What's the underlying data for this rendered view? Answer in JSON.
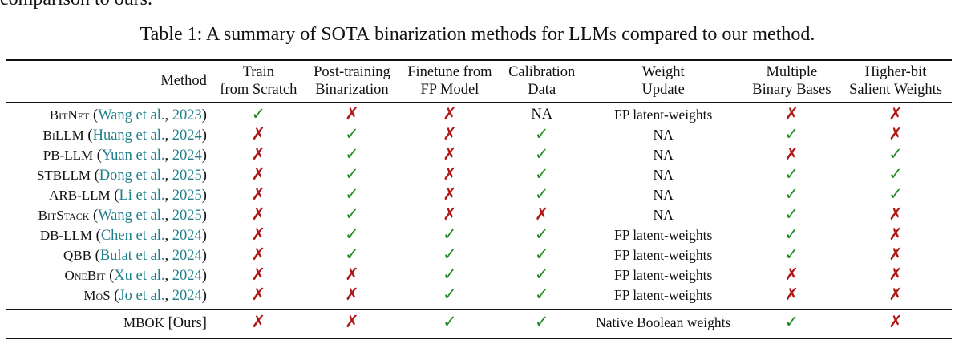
{
  "context_text": "comparison to ours.",
  "caption": {
    "label": "Table 1:",
    "pre": "A summary of",
    "sota": "SOTA",
    "mid": "binarization methods for",
    "llms": "LLMs",
    "post": "compared to our method."
  },
  "columns": {
    "method": "Method",
    "train_from_scratch": [
      "Train",
      "from Scratch"
    ],
    "post_training_binarization": [
      "Post-training",
      "Binarization"
    ],
    "finetune_from_fp": [
      "Finetune from",
      "FP Model"
    ],
    "calibration_data": [
      "Calibration",
      "Data"
    ],
    "weight_update": [
      "Weight",
      "Update"
    ],
    "multiple_binary_bases": [
      "Multiple",
      "Binary Bases"
    ],
    "higher_bit_salient": [
      "Higher-bit",
      "Salient Weights"
    ]
  },
  "marks": {
    "yes": "✓",
    "no": "✗"
  },
  "rows": [
    {
      "name": "BitNet",
      "cite_author": "Wang et al.",
      "cite_year": "2023",
      "train": "yes",
      "ptb": "no",
      "ft": "no",
      "calib": "NA",
      "update": "FP latent-weights",
      "multi": "no",
      "salient": "no"
    },
    {
      "name": "BiLLM",
      "cite_author": "Huang et al.",
      "cite_year": "2024",
      "train": "no",
      "ptb": "yes",
      "ft": "no",
      "calib": "yes",
      "update": "NA",
      "multi": "yes",
      "salient": "no"
    },
    {
      "name": "PB-LLM",
      "cite_author": "Yuan et al.",
      "cite_year": "2024",
      "train": "no",
      "ptb": "yes",
      "ft": "no",
      "calib": "yes",
      "update": "NA",
      "multi": "no",
      "salient": "yes"
    },
    {
      "name": "STBLLM",
      "cite_author": "Dong et al.",
      "cite_year": "2025",
      "train": "no",
      "ptb": "yes",
      "ft": "no",
      "calib": "yes",
      "update": "NA",
      "multi": "yes",
      "salient": "yes"
    },
    {
      "name": "ARB-LLM",
      "cite_author": "Li et al.",
      "cite_year": "2025",
      "train": "no",
      "ptb": "yes",
      "ft": "no",
      "calib": "yes",
      "update": "NA",
      "multi": "yes",
      "salient": "yes"
    },
    {
      "name": "BitStack",
      "cite_author": "Wang et al.",
      "cite_year": "2025",
      "train": "no",
      "ptb": "yes",
      "ft": "no",
      "calib": "no",
      "update": "NA",
      "multi": "yes",
      "salient": "no"
    },
    {
      "name": "DB-LLM",
      "cite_author": "Chen et al.",
      "cite_year": "2024",
      "train": "no",
      "ptb": "yes",
      "ft": "yes",
      "calib": "yes",
      "update": "FP latent-weights",
      "multi": "yes",
      "salient": "no"
    },
    {
      "name": "QBB",
      "cite_author": "Bulat et al.",
      "cite_year": "2024",
      "train": "no",
      "ptb": "yes",
      "ft": "yes",
      "calib": "yes",
      "update": "FP latent-weights",
      "multi": "yes",
      "salient": "no"
    },
    {
      "name": "OneBit",
      "cite_author": "Xu et al.",
      "cite_year": "2024",
      "train": "no",
      "ptb": "no",
      "ft": "yes",
      "calib": "yes",
      "update": "FP latent-weights",
      "multi": "no",
      "salient": "no"
    },
    {
      "name": "MoS",
      "cite_author": "Jo et al.",
      "cite_year": "2024",
      "train": "no",
      "ptb": "no",
      "ft": "yes",
      "calib": "yes",
      "update": "FP latent-weights",
      "multi": "no",
      "salient": "no"
    }
  ],
  "ours": {
    "name": "MBOK",
    "tag": "[Ours]",
    "train": "no",
    "ptb": "no",
    "ft": "yes",
    "calib": "yes",
    "update": "Native Boolean weights",
    "multi": "yes",
    "salient": "no"
  },
  "colors": {
    "check": "#1f8a1f",
    "cross": "#b01818",
    "citation": "#1f7f8c"
  }
}
